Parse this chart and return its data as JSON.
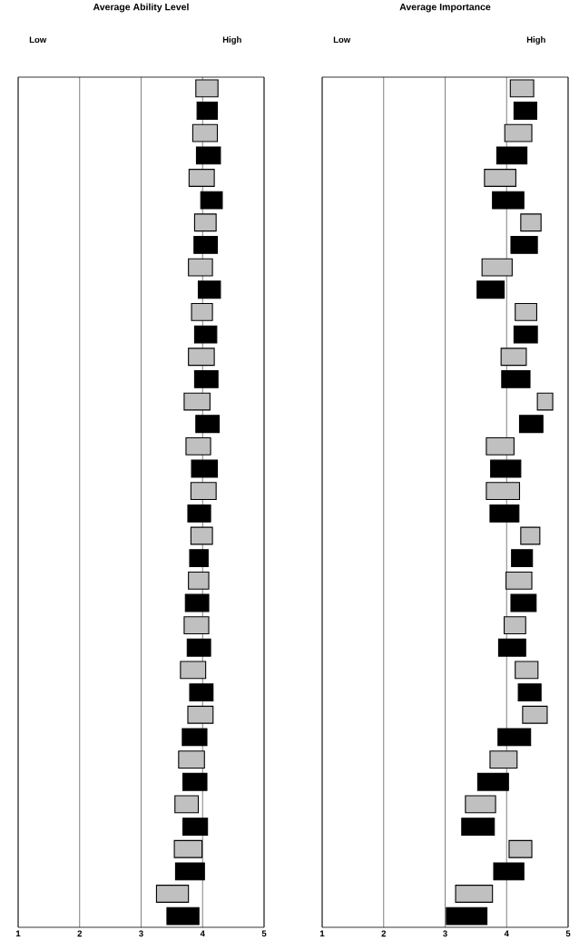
{
  "chart_data": [
    {
      "type": "bar",
      "orientation": "horizontal",
      "title": "Average Ability Level",
      "annotations": [
        "Low",
        "High"
      ],
      "categories": [
        null,
        null,
        null,
        null,
        null,
        null,
        null,
        null,
        null,
        null,
        null,
        null,
        null,
        null,
        null,
        null,
        null,
        null,
        null,
        null,
        null,
        null,
        null,
        null,
        null,
        null,
        null,
        null,
        null,
        null,
        null,
        null,
        null,
        null,
        null,
        null,
        null,
        null
      ],
      "base": [
        3.89,
        3.91,
        3.84,
        3.9,
        3.78,
        3.97,
        3.87,
        3.86,
        3.77,
        3.93,
        3.82,
        3.87,
        3.77,
        3.87,
        3.7,
        3.89,
        3.73,
        3.82,
        3.81,
        3.76,
        3.81,
        3.79,
        3.77,
        3.72,
        3.7,
        3.75,
        3.64,
        3.79,
        3.76,
        3.67,
        3.61,
        3.68,
        3.55,
        3.68,
        3.54,
        3.56,
        3.25,
        3.42
      ],
      "values": [
        0.36,
        0.33,
        0.4,
        0.39,
        0.41,
        0.35,
        0.35,
        0.38,
        0.39,
        0.36,
        0.34,
        0.36,
        0.42,
        0.38,
        0.42,
        0.38,
        0.4,
        0.42,
        0.41,
        0.37,
        0.35,
        0.3,
        0.33,
        0.38,
        0.4,
        0.38,
        0.41,
        0.38,
        0.41,
        0.4,
        0.42,
        0.39,
        0.38,
        0.4,
        0.45,
        0.47,
        0.52,
        0.52
      ],
      "colors": [
        "#c0c0c0",
        "#000000",
        "#c0c0c0",
        "#000000",
        "#c0c0c0",
        "#000000",
        "#c0c0c0",
        "#000000",
        "#c0c0c0",
        "#000000",
        "#c0c0c0",
        "#000000",
        "#c0c0c0",
        "#000000",
        "#c0c0c0",
        "#000000",
        "#c0c0c0",
        "#000000",
        "#c0c0c0",
        "#000000",
        "#c0c0c0",
        "#000000",
        "#c0c0c0",
        "#000000",
        "#c0c0c0",
        "#000000",
        "#c0c0c0",
        "#000000",
        "#c0c0c0",
        "#000000",
        "#c0c0c0",
        "#000000",
        "#c0c0c0",
        "#000000",
        "#c0c0c0",
        "#000000",
        "#c0c0c0",
        "#000000"
      ],
      "xlim": [
        1,
        5
      ],
      "xticks": [
        1,
        2,
        3,
        4,
        5
      ],
      "grid": "x",
      "tick_labels": "x"
    },
    {
      "type": "bar",
      "orientation": "horizontal",
      "title": "Average Importance",
      "annotations": [
        "Low",
        "High"
      ],
      "categories": [
        null,
        null,
        null,
        null,
        null,
        null,
        null,
        null,
        null,
        null,
        null,
        null,
        null,
        null,
        null,
        null,
        null,
        null,
        null,
        null,
        null,
        null,
        null,
        null,
        null,
        null,
        null,
        null,
        null,
        null,
        null,
        null,
        null,
        null,
        null,
        null,
        null,
        null
      ],
      "base": [
        4.06,
        4.12,
        3.97,
        3.84,
        3.64,
        3.77,
        4.23,
        4.07,
        3.6,
        3.52,
        4.14,
        4.12,
        3.91,
        3.92,
        4.5,
        4.21,
        3.67,
        3.74,
        3.67,
        3.73,
        4.23,
        4.08,
        3.99,
        4.07,
        3.96,
        3.87,
        4.14,
        4.19,
        4.26,
        3.86,
        3.73,
        3.53,
        3.33,
        3.27,
        4.04,
        3.79,
        3.17,
        3.02
      ],
      "values": [
        0.38,
        0.37,
        0.44,
        0.49,
        0.51,
        0.51,
        0.33,
        0.43,
        0.49,
        0.44,
        0.35,
        0.38,
        0.41,
        0.46,
        0.25,
        0.38,
        0.45,
        0.49,
        0.54,
        0.47,
        0.31,
        0.34,
        0.42,
        0.41,
        0.35,
        0.44,
        0.37,
        0.37,
        0.4,
        0.53,
        0.44,
        0.5,
        0.49,
        0.53,
        0.37,
        0.49,
        0.6,
        0.66
      ],
      "colors": [
        "#c0c0c0",
        "#000000",
        "#c0c0c0",
        "#000000",
        "#c0c0c0",
        "#000000",
        "#c0c0c0",
        "#000000",
        "#c0c0c0",
        "#000000",
        "#c0c0c0",
        "#000000",
        "#c0c0c0",
        "#000000",
        "#c0c0c0",
        "#000000",
        "#c0c0c0",
        "#000000",
        "#c0c0c0",
        "#000000",
        "#c0c0c0",
        "#000000",
        "#c0c0c0",
        "#000000",
        "#c0c0c0",
        "#000000",
        "#c0c0c0",
        "#000000",
        "#c0c0c0",
        "#000000",
        "#c0c0c0",
        "#000000",
        "#c0c0c0",
        "#000000",
        "#c0c0c0",
        "#000000",
        "#c0c0c0",
        "#000000"
      ],
      "xlim": [
        1,
        5
      ],
      "xticks": [
        1,
        2,
        3,
        4,
        5
      ],
      "grid": "x",
      "tick_labels": "x"
    }
  ]
}
